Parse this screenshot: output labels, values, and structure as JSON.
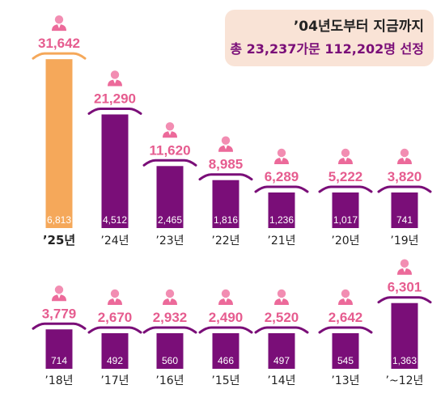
{
  "summary": {
    "line1": "’04년도부터 지금까지",
    "line2": "총 23,237가문 112,202명 선정"
  },
  "colors": {
    "bar": "#7a0e78",
    "bar_highlight": "#f5a85a",
    "top_label": "#e65c8f",
    "top_label_highlight": "#e65c8f",
    "person_head": "#f28db2",
    "person_body": "#ec6a9a",
    "roof": "#7a0e78",
    "roof_highlight": "#f5a85a"
  },
  "chart_data": [
    {
      "type": "bar",
      "categories": [
        "’25년",
        "’24년",
        "’23년",
        "’22년",
        "’21년",
        "’20년",
        "’19년"
      ],
      "series": [
        {
          "values": [
            31642,
            21290,
            11620,
            8985,
            6289,
            5222,
            3820
          ]
        },
        {
          "values": [
            6813,
            4512,
            2465,
            1816,
            1236,
            1017,
            741
          ]
        }
      ],
      "top_labels": [
        "31,642",
        "21,290",
        "11,620",
        "8,985",
        "6,289",
        "5,222",
        "3,820"
      ],
      "inner_labels": [
        "6,813",
        "4,512",
        "2,465",
        "1,816",
        "1,236",
        "1,017",
        "741"
      ],
      "highlight_index": 0
    },
    {
      "type": "bar",
      "categories": [
        "’18년",
        "’17년",
        "’16년",
        "’15년",
        "’14년",
        "’13년",
        "’~12년"
      ],
      "series": [
        {
          "values": [
            3779,
            2670,
            2932,
            2490,
            2520,
            2642,
            6301
          ]
        },
        {
          "values": [
            714,
            492,
            560,
            466,
            497,
            545,
            1363
          ]
        }
      ],
      "top_labels": [
        "3,779",
        "2,670",
        "2,932",
        "2,490",
        "2,520",
        "2,642",
        "6,301"
      ],
      "inner_labels": [
        "714",
        "492",
        "560",
        "466",
        "497",
        "545",
        "1,363"
      ],
      "highlight_index": -1
    }
  ]
}
